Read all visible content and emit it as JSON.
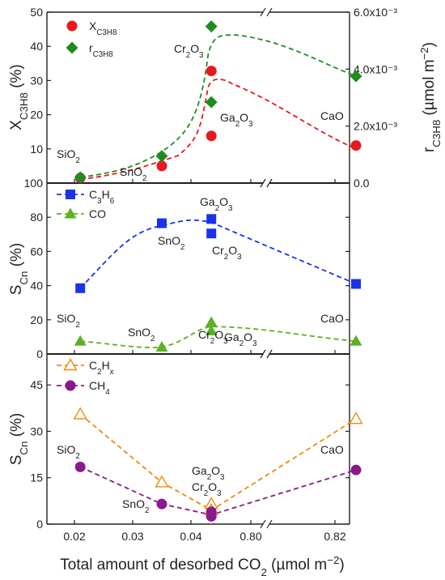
{
  "colors": {
    "red": "#e8191e",
    "green": "#1f8c1f",
    "blue": "#1a33e6",
    "lightgreen": "#5bb224",
    "orange": "#f08a0a",
    "purple": "#8a1a8c"
  },
  "chart_data": [
    {
      "panel": "top",
      "type": "scatter",
      "xlabel": "Total amount of desorbed CO₂ (µmol m⁻²)",
      "x_categories": [
        "0.02",
        "0.03",
        "0.04",
        "0.80",
        "0.82"
      ],
      "x_axis_break_between": [
        "0.04",
        "0.80"
      ],
      "ylabel_left": {
        "base": "X",
        "sub": "C3H8",
        "unit": " (%)"
      },
      "ylabel_right": {
        "base": "r",
        "sub": "C3H8",
        "unit_pre": " (µmol m",
        "unit_sup": "−2",
        "unit_post": ")"
      },
      "ylim_left": [
        0,
        50
      ],
      "yticks_left": [
        "0",
        "10",
        "20",
        "30",
        "40",
        "50"
      ],
      "ylim_right": [
        0,
        0.006
      ],
      "yticks_right": [
        "0.0",
        "2.0x10⁻³",
        "4.0x10⁻³",
        "6.0x10⁻³"
      ],
      "series": [
        {
          "name": {
            "base": "X",
            "sub": "C3H8"
          },
          "axis": "left",
          "marker": "circle",
          "color": "red",
          "points": [
            {
              "label": "SiO2",
              "x": 0.021,
              "y": 1.5
            },
            {
              "label": "SnO2",
              "x": 0.035,
              "y": 5
            },
            {
              "label": "Ga2O3",
              "x": 0.0435,
              "y": 13.8
            },
            {
              "label": "Cr2O3",
              "x": 0.0435,
              "y": 32.8
            },
            {
              "label": "CaO",
              "x": 0.825,
              "y": 11
            }
          ]
        },
        {
          "name": {
            "base": "r",
            "sub": "C3H8"
          },
          "axis": "right",
          "marker": "diamond",
          "color": "green",
          "points": [
            {
              "label": "SiO2",
              "x": 0.021,
              "y": 0.0002
            },
            {
              "label": "SnO2",
              "x": 0.035,
              "y": 0.00095
            },
            {
              "label": "Ga2O3",
              "x": 0.0435,
              "y": 0.00284
            },
            {
              "label": "Cr2O3",
              "x": 0.0435,
              "y": 0.0055
            },
            {
              "label": "CaO",
              "x": 0.825,
              "y": 0.00375
            }
          ]
        }
      ],
      "annotations": [
        {
          "base": "SiO",
          "sub": "2",
          "target": "SiO2"
        },
        {
          "base": "SnO",
          "sub": "2",
          "target": "SnO2"
        },
        {
          "base": "Ga",
          "sub": "2",
          "rest": "O",
          "sub2": "3",
          "target": "Ga2O3"
        },
        {
          "base": "Cr",
          "sub": "2",
          "rest": "O",
          "sub2": "3",
          "target": "Cr2O3"
        },
        {
          "base": "CaO",
          "target": "CaO"
        }
      ]
    },
    {
      "panel": "middle",
      "type": "scatter",
      "ylabel": {
        "base": "S",
        "sub": "Cn",
        "unit": " (%)"
      },
      "ylim": [
        0,
        100
      ],
      "yticks": [
        "0",
        "20",
        "40",
        "60",
        "80",
        "100"
      ],
      "series": [
        {
          "name": {
            "base": "C",
            "sub": "3",
            "rest": "H",
            "sub2": "6"
          },
          "marker": "square",
          "color": "blue",
          "points": [
            {
              "label": "SiO2",
              "x": 0.021,
              "y": 38.5
            },
            {
              "label": "SnO2",
              "x": 0.035,
              "y": 76.5
            },
            {
              "label": "Ga2O3",
              "x": 0.0435,
              "y": 79
            },
            {
              "label": "Cr2O3",
              "x": 0.0435,
              "y": 70.5
            },
            {
              "label": "CaO",
              "x": 0.825,
              "y": 41
            }
          ]
        },
        {
          "name": {
            "base": "CO"
          },
          "marker": "triangle",
          "color": "lightgreen",
          "points": [
            {
              "label": "SiO2",
              "x": 0.021,
              "y": 7.5
            },
            {
              "label": "SnO2",
              "x": 0.035,
              "y": 4
            },
            {
              "label": "Cr2O3",
              "x": 0.0435,
              "y": 18.5
            },
            {
              "label": "Ga2O3",
              "x": 0.0435,
              "y": 13.5
            },
            {
              "label": "CaO",
              "x": 0.825,
              "y": 7.5
            }
          ]
        }
      ],
      "annotations": [
        {
          "base": "Ga",
          "sub": "2",
          "rest": "O",
          "sub2": "3",
          "target": "Ga2O3-C3H6"
        },
        {
          "base": "SnO",
          "sub": "2",
          "target": "SnO2-C3H6"
        },
        {
          "base": "Cr",
          "sub": "2",
          "rest": "O",
          "sub2": "3",
          "target": "Cr2O3-C3H6"
        },
        {
          "base": "SiO",
          "sub": "2",
          "target": "SiO2-C3H6"
        },
        {
          "base": "CaO",
          "target": "CaO-C3H6"
        },
        {
          "base": "SnO",
          "sub": "2",
          "target": "SnO2-CO"
        },
        {
          "base": "Cr",
          "sub": "2",
          "rest": "O",
          "sub2": "3",
          "target": "Cr2O3-CO"
        },
        {
          "base": "Ga",
          "sub": "2",
          "rest": "O",
          "sub2": "3",
          "target": "Ga2O3-CO"
        }
      ]
    },
    {
      "panel": "bottom",
      "type": "scatter",
      "ylabel": {
        "base": "S",
        "sub": "Cn",
        "unit": " (%)"
      },
      "ylim": [
        0,
        55
      ],
      "yticks": [
        "0",
        "15",
        "30",
        "45"
      ],
      "series": [
        {
          "name": {
            "base": "C",
            "sub": "2",
            "rest": "H",
            "sub2": "x"
          },
          "marker": "open-triangle",
          "color": "orange",
          "points": [
            {
              "label": "SiO2",
              "x": 0.021,
              "y": 35.5
            },
            {
              "label": "SnO2",
              "x": 0.035,
              "y": 13.5
            },
            {
              "label": "Ga2O3",
              "x": 0.0435,
              "y": 6.5
            },
            {
              "label": "Cr2O3",
              "x": 0.0435,
              "y": 4.5
            },
            {
              "label": "CaO",
              "x": 0.825,
              "y": 34
            }
          ]
        },
        {
          "name": {
            "base": "CH",
            "sub": "4"
          },
          "marker": "circle",
          "color": "purple",
          "points": [
            {
              "label": "SiO2",
              "x": 0.021,
              "y": 18.5
            },
            {
              "label": "SnO2",
              "x": 0.035,
              "y": 6.5
            },
            {
              "label": "Ga2O3",
              "x": 0.0435,
              "y": 4
            },
            {
              "label": "Cr2O3",
              "x": 0.0435,
              "y": 2.5
            },
            {
              "label": "CaO",
              "x": 0.825,
              "y": 17.5
            }
          ]
        }
      ],
      "annotations": [
        {
          "base": "SiO",
          "sub": "2",
          "target": "SiO2"
        },
        {
          "base": "SnO",
          "sub": "2",
          "target": "SnO2"
        },
        {
          "base": "Ga",
          "sub": "2",
          "rest": "O",
          "sub2": "3",
          "target": "Ga2O3"
        },
        {
          "base": "Cr",
          "sub": "2",
          "rest": "O",
          "sub2": "3",
          "target": "Cr2O3"
        },
        {
          "base": "CaO",
          "target": "CaO"
        }
      ]
    }
  ]
}
